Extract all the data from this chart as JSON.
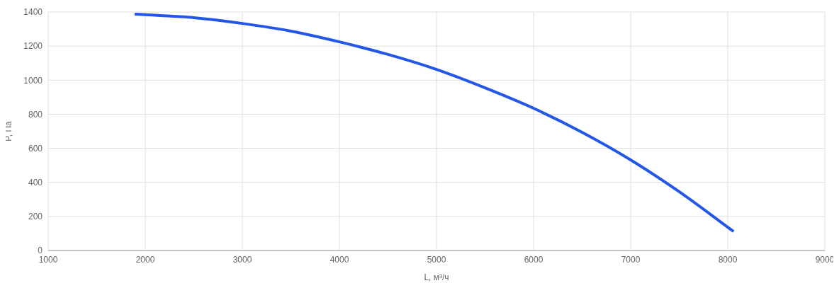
{
  "chart_data": {
    "type": "line",
    "xlabel": "L, м³/ч",
    "ylabel": "P, Па",
    "x": [
      1890,
      2000,
      2500,
      3000,
      3500,
      4000,
      4500,
      5000,
      5500,
      6000,
      6500,
      7000,
      7500,
      8000,
      8060
    ],
    "series": [
      {
        "color": "#2457e8",
        "values": [
          1388,
          1384,
          1367,
          1333,
          1288,
          1225,
          1151,
          1063,
          955,
          835,
          694,
          532,
          345,
          137,
          112
        ]
      }
    ],
    "xlim": [
      1000,
      9000
    ],
    "xticks": [
      1000,
      2000,
      3000,
      4000,
      5000,
      6000,
      7000,
      8000,
      9000
    ],
    "ylim": [
      0,
      1400
    ],
    "yticks": [
      0,
      200,
      400,
      600,
      800,
      1000,
      1200,
      1400
    ],
    "grid": true,
    "legend": false,
    "marker": "none",
    "line_style": "solid"
  }
}
